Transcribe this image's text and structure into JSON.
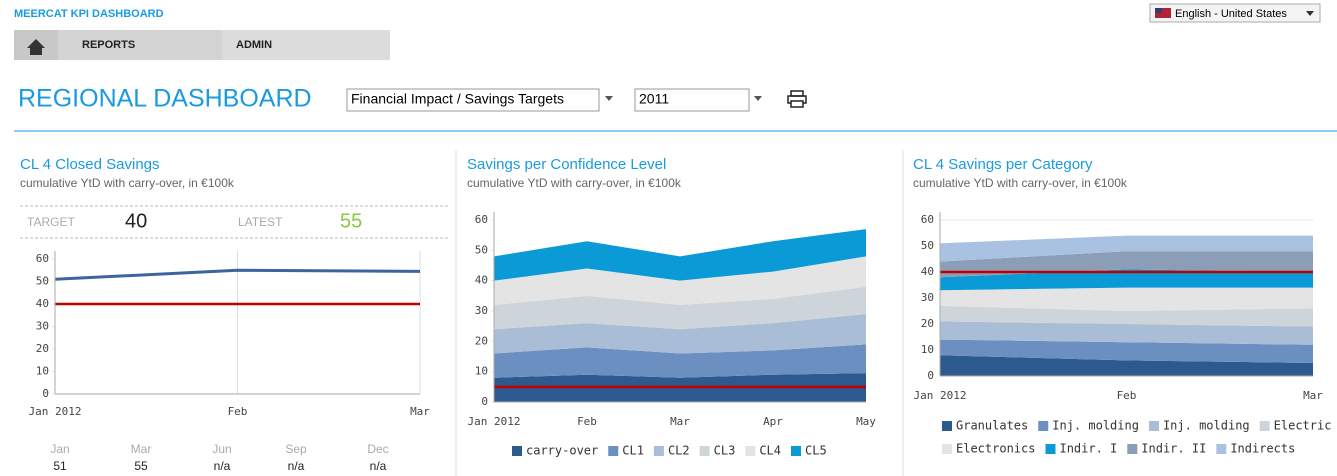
{
  "header": {
    "brand": "MEERCAT KPI DASHBOARD",
    "language": "English - United States"
  },
  "nav": [
    "REPORTS",
    "ADMIN"
  ],
  "page_title": "REGIONAL DASHBOARD",
  "filters": {
    "report": "Financial Impact / Savings Targets",
    "year": "2011"
  },
  "kpi": {
    "target_label": "TARGET",
    "target": 40,
    "latest_label": "LATEST",
    "latest": 55
  },
  "monthly_table": {
    "columns": [
      "Jan",
      "Mar",
      "Jun",
      "Sep",
      "Dec"
    ],
    "values": [
      51,
      55,
      "n/a",
      "n/a",
      "n/a"
    ]
  },
  "chart_data": [
    {
      "type": "line",
      "title": "CL 4 Closed Savings",
      "subtitle": "cumulative YtD with carry-over, in €100k",
      "categories": [
        "Jan 2012",
        "Feb",
        "Mar"
      ],
      "series": [
        {
          "color": "#3d64a0",
          "values": [
            51,
            55,
            54.5
          ]
        }
      ],
      "ylim": [
        0,
        60
      ],
      "yticks": [
        0,
        10,
        20,
        30,
        40,
        50,
        60
      ],
      "grid": "x"
    },
    {
      "type": "stacked_area",
      "title": "Savings per Confidence Level",
      "subtitle": "cumulative YtD with carry-over, in €100k",
      "categories": [
        "Jan 2012",
        "Feb",
        "Mar",
        "Apr",
        "May"
      ],
      "series": [
        {
          "name": "carry-over",
          "color": "#2d5a8e",
          "values": [
            8,
            9,
            8,
            9,
            9.5
          ]
        },
        {
          "name": "CL1",
          "color": "#6b8fc0",
          "values": [
            8,
            9,
            8,
            8,
            9.5
          ]
        },
        {
          "name": "CL2",
          "color": "#a9bdd7",
          "values": [
            8,
            8,
            8,
            9,
            10
          ]
        },
        {
          "name": "CL3",
          "color": "#cdd5da",
          "values": [
            8,
            9,
            8,
            8,
            9
          ]
        },
        {
          "name": "CL4",
          "color": "#e4e4e4",
          "values": [
            8,
            9,
            8,
            9,
            10
          ]
        },
        {
          "name": "CL5",
          "color": "#0a9bd6",
          "values": [
            8,
            9,
            8,
            10,
            9
          ]
        }
      ],
      "target_line": 5,
      "ylim": [
        0,
        60
      ],
      "yticks": [
        0,
        10,
        20,
        30,
        40,
        50,
        60
      ],
      "grid": false
    },
    {
      "type": "stacked_area",
      "title": "CL 4 Savings per Category",
      "subtitle": "cumulative YtD with carry-over, in €100k",
      "categories": [
        "Jan 2012",
        "Feb",
        "Mar"
      ],
      "series": [
        {
          "name": "Granulates",
          "color": "#2d5a8e",
          "values": [
            8,
            6,
            5
          ]
        },
        {
          "name": "Inj. molding",
          "color": "#6b8fc0",
          "values": [
            6,
            7,
            7
          ]
        },
        {
          "name": "Inj. molding",
          "color": "#a9bdd7",
          "values": [
            7,
            7,
            7
          ]
        },
        {
          "name": "Electric",
          "color": "#cdd5da",
          "values": [
            6,
            5,
            7
          ]
        },
        {
          "name": "Electronics",
          "color": "#e4e4e4",
          "values": [
            6,
            9,
            8
          ]
        },
        {
          "name": "Indir. I",
          "color": "#0a9bd6",
          "values": [
            5,
            7,
            6
          ]
        },
        {
          "name": "Indir. II",
          "color": "#8c9db7",
          "values": [
            6,
            7,
            8
          ]
        },
        {
          "name": "Indirects",
          "color": "#aac2e2",
          "values": [
            7,
            6,
            6
          ]
        }
      ],
      "target_line": 40,
      "ylim": [
        0,
        60
      ],
      "yticks": [
        0,
        10,
        20,
        30,
        40,
        50,
        60
      ],
      "grid": "y"
    }
  ]
}
